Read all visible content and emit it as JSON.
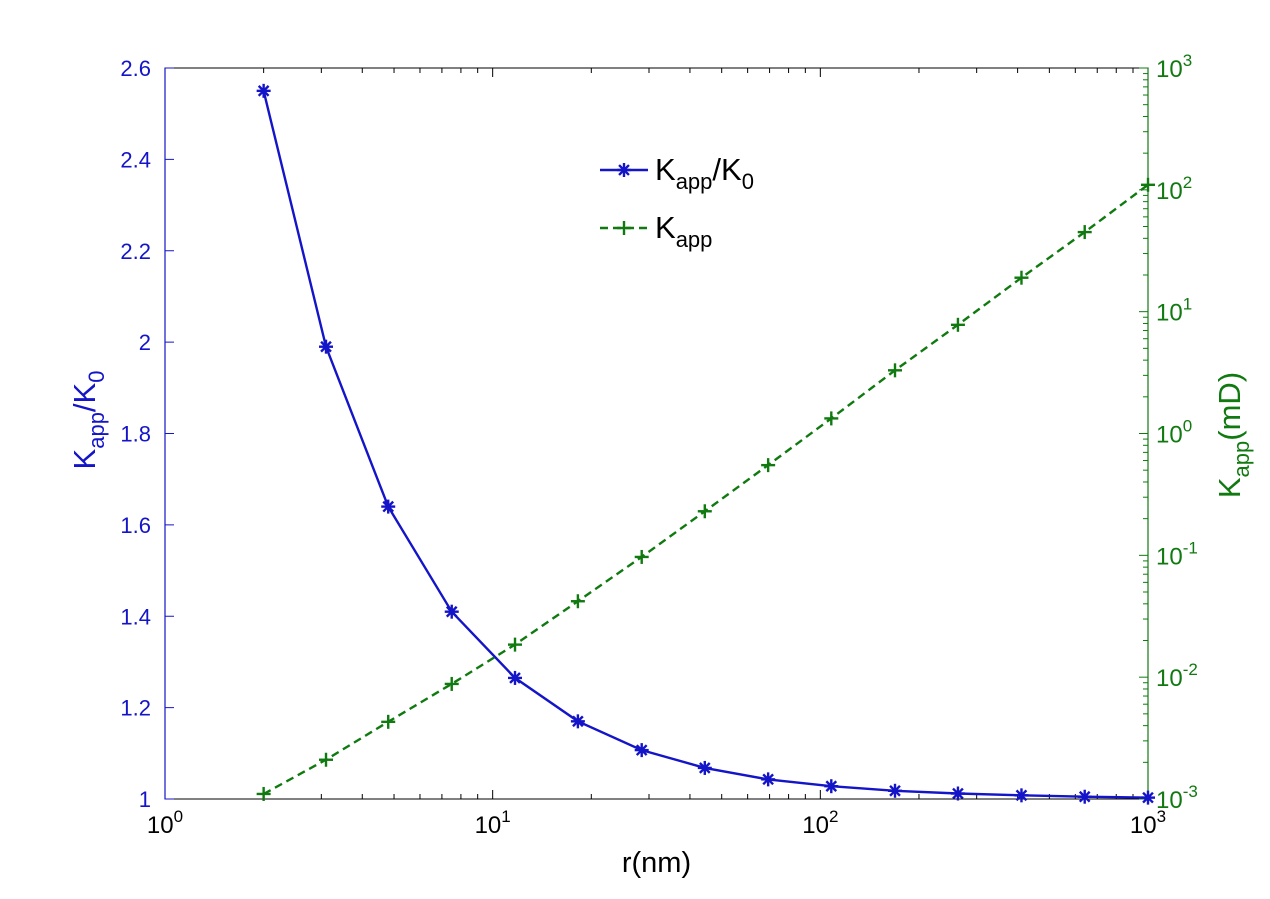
{
  "chart_data": {
    "type": "line",
    "x_scale": "log",
    "xlim": [
      1,
      1000
    ],
    "xlabel": "r(nm)",
    "x_ticks": [
      {
        "base": "10",
        "exp": "0"
      },
      {
        "base": "10",
        "exp": "1"
      },
      {
        "base": "10",
        "exp": "2"
      },
      {
        "base": "10",
        "exp": "3"
      }
    ],
    "left_axis": {
      "label_main": "K",
      "label_sub": "app",
      "label_mid": "/K",
      "label_sub2": "0",
      "ylim": [
        1,
        2.6
      ],
      "scale": "linear",
      "color": "#1414c8",
      "ticks": [
        "1",
        "1.2",
        "1.4",
        "1.6",
        "1.8",
        "2",
        "2.2",
        "2.4",
        "2.6"
      ]
    },
    "right_axis": {
      "label_main": "K",
      "label_sub": "app",
      "label_rest": "(mD)",
      "ylim": [
        0.001,
        1000
      ],
      "scale": "log",
      "color": "#107a10",
      "ticks": [
        {
          "base": "10",
          "exp": "-3"
        },
        {
          "base": "10",
          "exp": "-2"
        },
        {
          "base": "10",
          "exp": "-1"
        },
        {
          "base": "10",
          "exp": "0"
        },
        {
          "base": "10",
          "exp": "1"
        },
        {
          "base": "10",
          "exp": "2"
        },
        {
          "base": "10",
          "exp": "3"
        }
      ]
    },
    "x": [
      2,
      3.1,
      4.8,
      7.5,
      11.7,
      18.2,
      28.5,
      44.4,
      69.3,
      108,
      169,
      263,
      411,
      641,
      1000
    ],
    "series": [
      {
        "name_main": "K",
        "name_sub": "app",
        "name_mid": "/K",
        "name_sub2": "0",
        "axis": "left",
        "color": "#1414c8",
        "line": "solid",
        "marker": "*",
        "values": [
          2.55,
          1.99,
          1.64,
          1.41,
          1.265,
          1.17,
          1.107,
          1.068,
          1.043,
          1.028,
          1.018,
          1.012,
          1.008,
          1.005,
          1.003
        ]
      },
      {
        "name_main": "K",
        "name_sub": "app",
        "axis": "right",
        "color": "#107a10",
        "line": "dashed",
        "marker": "+",
        "values": [
          0.0011,
          0.0021,
          0.0043,
          0.0088,
          0.0185,
          0.042,
          0.097,
          0.23,
          0.55,
          1.33,
          3.3,
          7.8,
          19,
          45,
          110
        ]
      }
    ],
    "legend_position": "top-center",
    "grid": false
  }
}
